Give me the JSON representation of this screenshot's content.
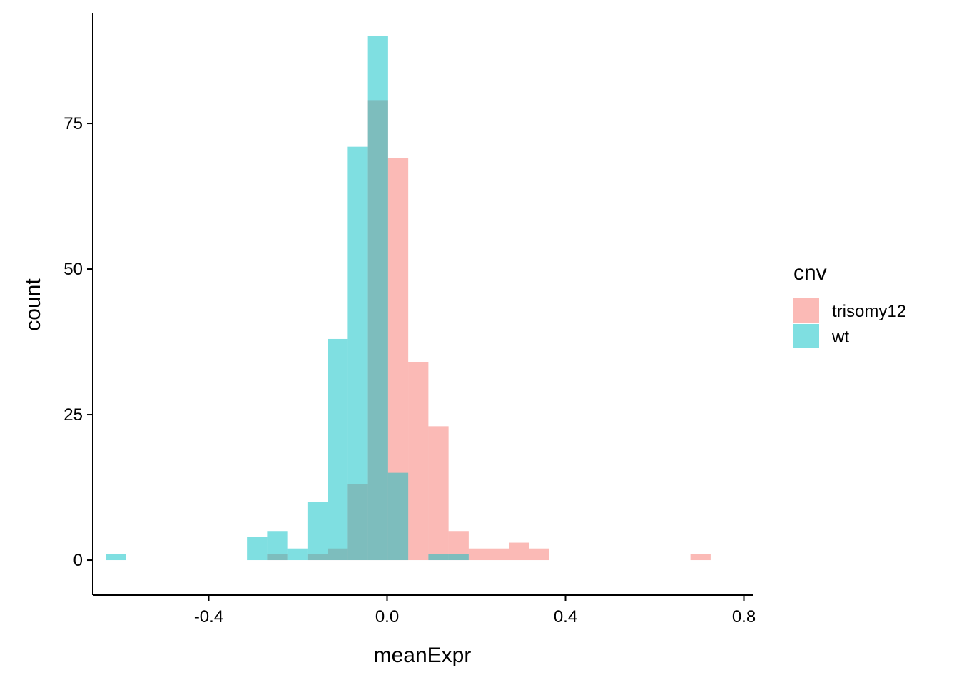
{
  "chart_data": {
    "type": "bar",
    "subtype": "overlapping-histogram",
    "title": "",
    "xlabel": "meanExpr",
    "ylabel": "count",
    "xlim": [
      -0.66,
      0.82
    ],
    "ylim": [
      -6,
      94
    ],
    "x_ticks": [
      -0.4,
      0.0,
      0.4,
      0.8
    ],
    "x_tick_labels": [
      "-0.4",
      "0.0",
      "0.4",
      "0.8"
    ],
    "y_ticks": [
      0,
      25,
      50,
      75
    ],
    "y_tick_labels": [
      "0",
      "25",
      "50",
      "75"
    ],
    "grid": false,
    "bin_width": 0.0452,
    "legend": {
      "title": "cnv",
      "position": "right"
    },
    "bar_opacity": 0.5,
    "series": [
      {
        "name": "trisomy12",
        "color": "#F8766D",
        "bins": [
          {
            "x": -0.2464,
            "count": 1
          },
          {
            "x": -0.2012,
            "count": 0
          },
          {
            "x": -0.156,
            "count": 1
          },
          {
            "x": -0.1108,
            "count": 2
          },
          {
            "x": -0.0656,
            "count": 13
          },
          {
            "x": -0.0204,
            "count": 79
          },
          {
            "x": 0.0248,
            "count": 69
          },
          {
            "x": 0.07,
            "count": 34
          },
          {
            "x": 0.1152,
            "count": 23
          },
          {
            "x": 0.1604,
            "count": 5
          },
          {
            "x": 0.2056,
            "count": 2
          },
          {
            "x": 0.2508,
            "count": 2
          },
          {
            "x": 0.296,
            "count": 3
          },
          {
            "x": 0.3412,
            "count": 2
          },
          {
            "x": 0.7028,
            "count": 1
          }
        ]
      },
      {
        "name": "wt",
        "color": "#00BFC4",
        "bins": [
          {
            "x": -0.608,
            "count": 1
          },
          {
            "x": -0.2916,
            "count": 4
          },
          {
            "x": -0.2464,
            "count": 5
          },
          {
            "x": -0.2012,
            "count": 2
          },
          {
            "x": -0.156,
            "count": 10
          },
          {
            "x": -0.1108,
            "count": 38
          },
          {
            "x": -0.0656,
            "count": 71
          },
          {
            "x": -0.0204,
            "count": 90
          },
          {
            "x": 0.0248,
            "count": 15
          },
          {
            "x": 0.07,
            "count": 0
          },
          {
            "x": 0.1152,
            "count": 1
          },
          {
            "x": 0.1604,
            "count": 1
          }
        ]
      }
    ]
  }
}
